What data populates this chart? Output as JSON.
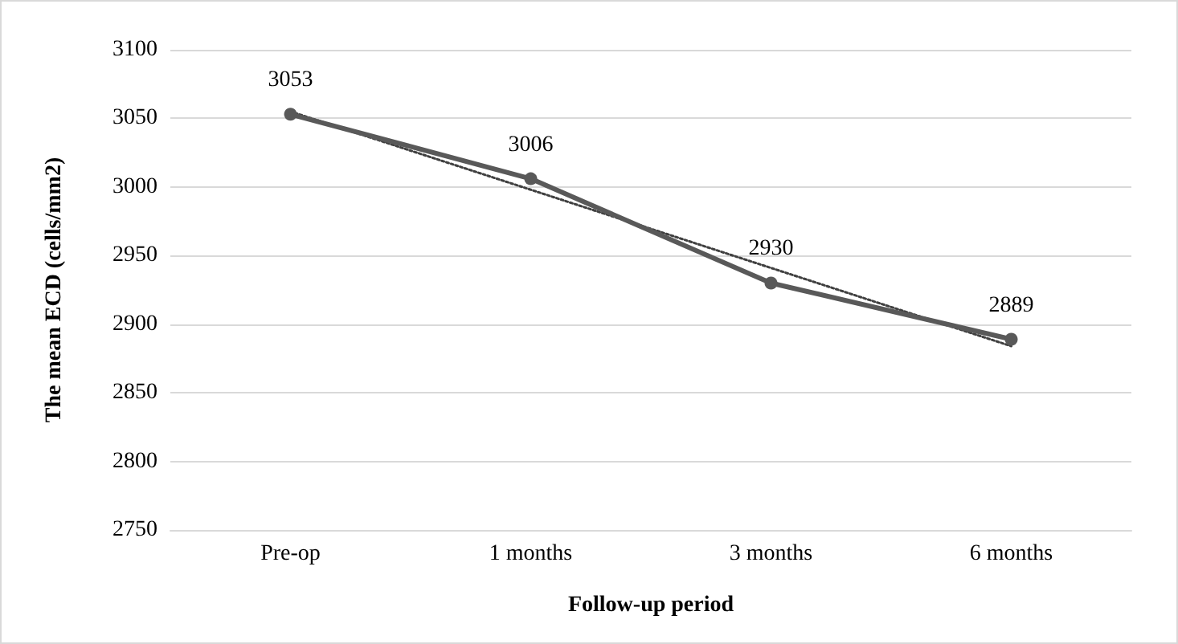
{
  "chart_data": {
    "type": "line",
    "xlabel": "Follow-up period",
    "ylabel": "The mean ECD (cells/mm2)",
    "categories": [
      "Pre-op",
      "1 months",
      "3 months",
      "6 months"
    ],
    "series": [
      {
        "color": "#595959",
        "values": [
          3053,
          3006,
          2930,
          2889
        ],
        "marker": "circle",
        "line_style": "solid",
        "value_labels": [
          "3053",
          "3006",
          "2930",
          "2889"
        ]
      },
      {
        "color": "#404040",
        "values": [
          3055,
          2998,
          2941,
          2884
        ],
        "marker": "none",
        "line_style": "dotted"
      }
    ],
    "ylim": [
      2750,
      3100
    ],
    "yticks": [
      2750,
      2800,
      2850,
      2900,
      2950,
      3000,
      3050,
      3100
    ],
    "grid": "y"
  }
}
